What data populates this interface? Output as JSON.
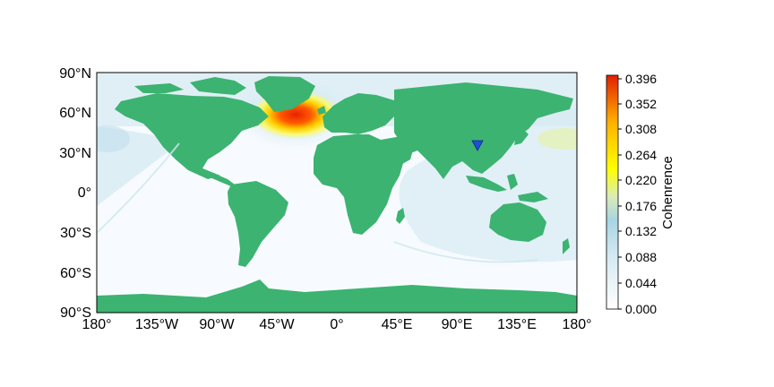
{
  "map": {
    "projection": "PlateCarree",
    "lon_range": [
      -180,
      180
    ],
    "lat_range": [
      -90,
      90
    ],
    "lon_ticks": [
      "180°",
      "135°W",
      "90°W",
      "45°W",
      "0°",
      "45°E",
      "90°E",
      "135°E",
      "180°"
    ],
    "lat_ticks": [
      "90°N",
      "60°N",
      "30°N",
      "0°",
      "30°S",
      "60°S",
      "90°S"
    ],
    "land_color": "#3cb371",
    "ocean_color": "#f7fbff",
    "hotspot": {
      "lon": -30,
      "lat": 57,
      "peak_value": 0.396
    },
    "station_marker": {
      "lon": 106,
      "lat": 34,
      "shape": "inverted-triangle",
      "color": "#1f4fd6"
    }
  },
  "colorbar": {
    "label": "Cohenrence",
    "ticks": [
      "0.396",
      "0.352",
      "0.308",
      "0.264",
      "0.220",
      "0.176",
      "0.132",
      "0.088",
      "0.044",
      "0.000"
    ],
    "range": [
      0,
      0.396
    ],
    "colors": [
      "#ffffff",
      "#d6eaf2",
      "#a8d4e4",
      "#f4fc7a",
      "#ffff00",
      "#ffb000",
      "#ff4000",
      "#e02000"
    ]
  }
}
